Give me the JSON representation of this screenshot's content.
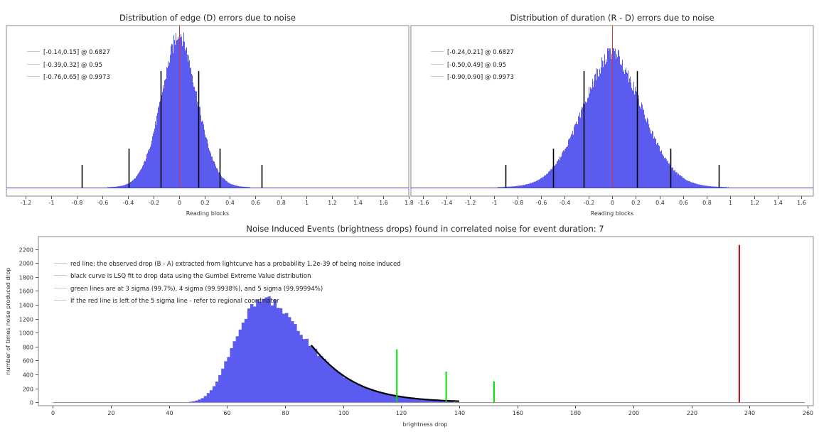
{
  "chart_data": [
    {
      "type": "bar",
      "title": "Distribution of edge (D) errors due to noise",
      "xlabel": "Reading blocks",
      "ylabel": "",
      "xlim": [
        -1.35,
        1.8
      ],
      "xticks": [
        -1.2,
        -1,
        -0.8,
        -0.6,
        -0.4,
        -0.2,
        0,
        0.2,
        0.4,
        0.6,
        0.8,
        1,
        1.2,
        1.4,
        1.6,
        "1.8"
      ],
      "histogram": {
        "center": 0.0,
        "sigma": 0.145,
        "peak": 1.0,
        "color": "#5b5bf0"
      },
      "center_line": 0,
      "interval_lines": [
        {
          "low": -0.14,
          "high": 0.15,
          "height": 0.72
        },
        {
          "low": -0.39,
          "high": 0.32,
          "height": 0.24
        },
        {
          "low": -0.76,
          "high": 0.65,
          "height": 0.14
        }
      ],
      "legend": [
        "[-0.14,0.15] @ 0.6827",
        "[-0.39,0.32] @ 0.95",
        "[-0.76,0.65] @ 0.9973"
      ],
      "legend_position": "top-left"
    },
    {
      "type": "bar",
      "title": "Distribution of duration (R - D) errors due to noise",
      "xlabel": "Reading blocks",
      "ylabel": "",
      "xlim": [
        -1.7,
        1.7
      ],
      "xticks": [
        -1.6,
        -1.4,
        -1.2,
        -1,
        -0.8,
        -0.6,
        -0.4,
        -0.2,
        0,
        0.2,
        0.4,
        0.6,
        0.8,
        1,
        1.2,
        1.4,
        1.6
      ],
      "histogram": {
        "center": 0.0,
        "sigma": 0.26,
        "peak": 0.9,
        "color": "#5b5bf0"
      },
      "center_line": 0,
      "interval_lines": [
        {
          "low": -0.24,
          "high": 0.21,
          "height": 0.72
        },
        {
          "low": -0.5,
          "high": 0.49,
          "height": 0.24
        },
        {
          "low": -0.9,
          "high": 0.9,
          "height": 0.14
        }
      ],
      "legend": [
        "[-0.24,0.21] @ 0.6827",
        "[-0.50,0.49] @ 0.95",
        "[-0.90,0.90] @ 0.9973"
      ],
      "legend_position": "top-left"
    },
    {
      "type": "bar",
      "title": "Noise Induced Events (brightness drops) found in correlated noise for event duration: 7",
      "xlabel": "brightness drop",
      "ylabel": "number of times noise produced drop",
      "xlim": [
        -5,
        262
      ],
      "ylim": [
        -50,
        2380
      ],
      "xticks": [
        0,
        20,
        40,
        60,
        80,
        100,
        120,
        140,
        160,
        180,
        200,
        220,
        240,
        260
      ],
      "yticks": [
        0,
        200,
        400,
        600,
        800,
        1000,
        1200,
        1400,
        1600,
        1800,
        2000,
        2200
      ],
      "histogram": {
        "mode": 73,
        "beta": 12,
        "peak": 1490,
        "range": [
          25,
          138
        ],
        "color": "#5b5bf0"
      },
      "fit_curve": {
        "type": "Gumbel",
        "from": 89,
        "to": 140,
        "color": "#000000"
      },
      "sigma_lines": [
        {
          "x": 118.5,
          "value": 760,
          "color": "#00e000"
        },
        {
          "x": 135.5,
          "value": 440,
          "color": "#00e000"
        },
        {
          "x": 152,
          "value": 300,
          "color": "#00e000"
        }
      ],
      "observed_drop": {
        "x": 236.5,
        "value": 2260,
        "color": "#cc0000"
      },
      "legend": [
        "red line: the observed drop (B - A) extracted from lightcurve has a probability 1.2e-39 of being noise induced",
        "black curve is LSQ fit to drop data using the Gumbel Extreme Value distribution",
        "green lines are at 3 sigma (99.7%), 4 sigma (99.9938%), and 5 sigma (99.99994%)",
        "If the red line is left of the 5 sigma line - refer to regional coordinator"
      ],
      "legend_position": "top-left"
    }
  ]
}
